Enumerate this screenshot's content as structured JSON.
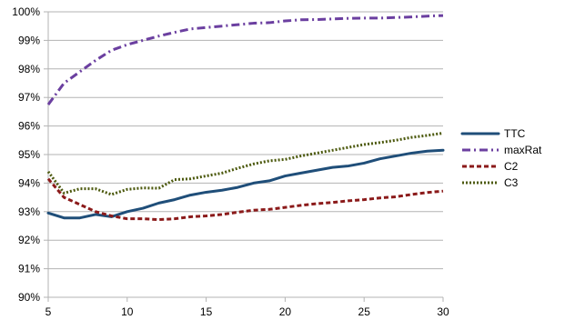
{
  "chart_data": {
    "type": "line",
    "title": "",
    "xlabel": "",
    "ylabel": "",
    "x": [
      5,
      6,
      7,
      8,
      9,
      10,
      11,
      12,
      13,
      14,
      15,
      16,
      17,
      18,
      19,
      20,
      21,
      22,
      23,
      24,
      25,
      26,
      27,
      28,
      29,
      30
    ],
    "xlim": [
      5,
      30
    ],
    "ylim": [
      90,
      100
    ],
    "x_ticks": [
      5,
      10,
      15,
      20,
      25,
      30
    ],
    "x_tick_labels": [
      "5",
      "10",
      "15",
      "20",
      "25",
      "30"
    ],
    "y_ticks": [
      90,
      91,
      92,
      93,
      94,
      95,
      96,
      97,
      98,
      99,
      100
    ],
    "y_tick_labels": [
      "90%",
      "91%",
      "92%",
      "93%",
      "94%",
      "95%",
      "96%",
      "97%",
      "98%",
      "99%",
      "100%"
    ],
    "grid": "horizontal",
    "legend_position": "right",
    "series": [
      {
        "name": "TTC",
        "color": "#1f4e79",
        "style": "solid",
        "values": [
          92.95,
          92.78,
          92.78,
          92.9,
          92.82,
          93.0,
          93.12,
          93.3,
          93.42,
          93.58,
          93.68,
          93.75,
          93.85,
          94.0,
          94.08,
          94.25,
          94.35,
          94.45,
          94.55,
          94.6,
          94.7,
          94.85,
          94.95,
          95.05,
          95.12,
          95.15
        ]
      },
      {
        "name": "maxRat",
        "color": "#6b3fa0",
        "style": "dashdot",
        "values": [
          96.75,
          97.5,
          97.9,
          98.3,
          98.65,
          98.85,
          99.0,
          99.15,
          99.28,
          99.4,
          99.45,
          99.5,
          99.55,
          99.6,
          99.62,
          99.68,
          99.72,
          99.73,
          99.75,
          99.77,
          99.78,
          99.78,
          99.8,
          99.82,
          99.85,
          99.87
        ]
      },
      {
        "name": "C2",
        "color": "#8b1a1a",
        "style": "dashed",
        "values": [
          94.15,
          93.5,
          93.25,
          93.0,
          92.85,
          92.75,
          92.75,
          92.72,
          92.75,
          92.82,
          92.85,
          92.9,
          92.98,
          93.05,
          93.08,
          93.15,
          93.22,
          93.28,
          93.32,
          93.38,
          93.42,
          93.48,
          93.52,
          93.6,
          93.67,
          93.72
        ]
      },
      {
        "name": "C3",
        "color": "#4d5a0f",
        "style": "dotted",
        "values": [
          94.4,
          93.65,
          93.8,
          93.8,
          93.6,
          93.78,
          93.83,
          93.82,
          94.12,
          94.15,
          94.25,
          94.35,
          94.52,
          94.67,
          94.78,
          94.83,
          94.95,
          95.05,
          95.15,
          95.25,
          95.35,
          95.42,
          95.5,
          95.6,
          95.67,
          95.75
        ]
      }
    ]
  }
}
